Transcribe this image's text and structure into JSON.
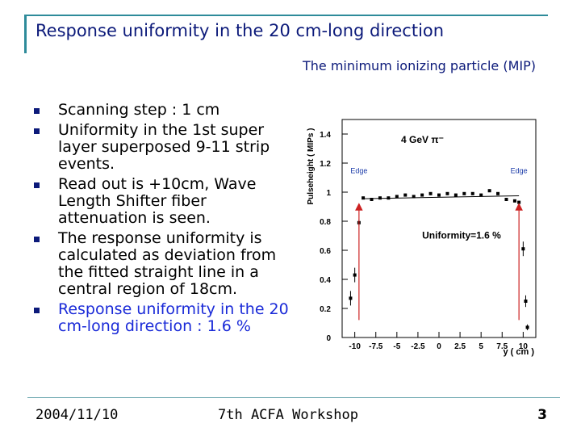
{
  "slide": {
    "title": "Response uniformity in the 20 cm-long  direction",
    "subtitle": "The minimum ionizing particle (MIP)",
    "bullets": [
      "Scanning step : 1 cm",
      "Uniformity in the 1st super layer superposed 9-11 strip events.",
      "Read out is +10cm, Wave Length Shifter fiber attenuation is seen.",
      "The response uniformity is calculated as deviation from the fitted straight line in a central region of 18cm.",
      "Response uniformity in the 20 cm-long direction : 1.6 %"
    ],
    "footer": {
      "date": "2004/11/10",
      "event": "7th ACFA Workshop",
      "page": "3"
    }
  },
  "colors": {
    "title": "#0c1a7a",
    "highlight": "#1a2ad8",
    "frame": "#2e8b9a",
    "arrow": "#cc2222",
    "edge_label": "#1a3aa8"
  },
  "chart_data": {
    "type": "scatter",
    "xlabel": "y ( cm )",
    "ylabel": "Pulseheight ( MIPs )",
    "xlim": [
      -11.5,
      11.5
    ],
    "ylim": [
      0,
      1.5
    ],
    "x_ticks": [
      -10,
      -7.5,
      -5,
      -2.5,
      0,
      2.5,
      5,
      7.5,
      10
    ],
    "x_tick_labels": [
      "-10",
      "-7.5",
      "-5",
      "-2.5",
      "0",
      "2.5",
      "5",
      "7.5",
      "10"
    ],
    "y_ticks": [
      0,
      0.2,
      0.4,
      0.6,
      0.8,
      1,
      1.2,
      1.4
    ],
    "y_tick_labels": [
      "0",
      "0.2",
      "0.4",
      "0.6",
      "0.8",
      "1",
      "1.2",
      "1.4"
    ],
    "annotation_particle": "4 GeV π⁻",
    "annotation_uniformity": "Uniformity=1.6 %",
    "edge_labels": [
      "Edge",
      "Edge"
    ],
    "edge_positions": [
      -9.5,
      9.5
    ],
    "points": [
      {
        "x": -10.5,
        "y": 0.27,
        "err": 0.05
      },
      {
        "x": -10,
        "y": 0.43,
        "err": 0.05
      },
      {
        "x": -9.5,
        "y": 0.79,
        "err": 0.02
      },
      {
        "x": -9,
        "y": 0.96,
        "err": 0.01
      },
      {
        "x": -8,
        "y": 0.95,
        "err": 0.01
      },
      {
        "x": -7,
        "y": 0.96,
        "err": 0.01
      },
      {
        "x": -6,
        "y": 0.96,
        "err": 0.01
      },
      {
        "x": -5,
        "y": 0.97,
        "err": 0.01
      },
      {
        "x": -4,
        "y": 0.98,
        "err": 0.01
      },
      {
        "x": -3,
        "y": 0.97,
        "err": 0.01
      },
      {
        "x": -2,
        "y": 0.98,
        "err": 0.01
      },
      {
        "x": -1,
        "y": 0.99,
        "err": 0.01
      },
      {
        "x": 0,
        "y": 0.98,
        "err": 0.01
      },
      {
        "x": 1,
        "y": 0.99,
        "err": 0.01
      },
      {
        "x": 2,
        "y": 0.98,
        "err": 0.01
      },
      {
        "x": 3,
        "y": 0.99,
        "err": 0.01
      },
      {
        "x": 4,
        "y": 0.99,
        "err": 0.01
      },
      {
        "x": 5,
        "y": 0.98,
        "err": 0.01
      },
      {
        "x": 6,
        "y": 1.01,
        "err": 0.01
      },
      {
        "x": 7,
        "y": 0.99,
        "err": 0.01
      },
      {
        "x": 8,
        "y": 0.95,
        "err": 0.01
      },
      {
        "x": 9,
        "y": 0.94,
        "err": 0.01
      },
      {
        "x": 9.5,
        "y": 0.93,
        "err": 0.01
      },
      {
        "x": 10,
        "y": 0.61,
        "err": 0.05
      },
      {
        "x": 10.3,
        "y": 0.25,
        "err": 0.04
      },
      {
        "x": 10.5,
        "y": 0.07,
        "err": 0.02
      }
    ],
    "fit_line": {
      "x": [
        -9,
        9.5
      ],
      "y": [
        0.955,
        0.975
      ]
    }
  }
}
